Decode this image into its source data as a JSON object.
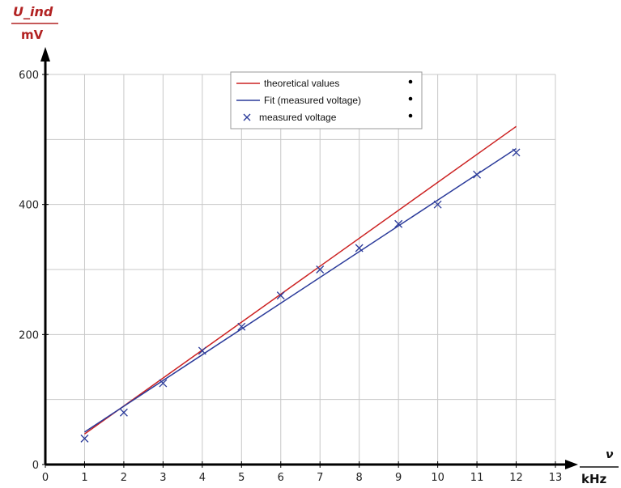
{
  "chart_data": {
    "type": "line",
    "title": "",
    "xlabel": "ν",
    "xunit": "kHz",
    "ylabel": "U_ind",
    "yunit": "mV",
    "xlim": [
      0,
      13
    ],
    "ylim": [
      0,
      600
    ],
    "x_ticks": [
      0,
      1,
      2,
      3,
      4,
      5,
      6,
      7,
      8,
      9,
      10,
      11,
      12,
      13
    ],
    "y_ticks": [
      0,
      200,
      400,
      600
    ],
    "grid": true,
    "legend_position": "top-center",
    "series": [
      {
        "name": "theoretical values",
        "kind": "line",
        "color": "#cc2222",
        "x": [
          1,
          12
        ],
        "y": [
          47,
          520
        ]
      },
      {
        "name": "Fit (measured voltage)",
        "kind": "line",
        "color": "#2a3a9a",
        "x": [
          1,
          12
        ],
        "y": [
          50,
          486
        ]
      },
      {
        "name": "measured voltage",
        "kind": "scatter",
        "marker": "x",
        "color": "#2a3a9a",
        "x": [
          1,
          2,
          3,
          4,
          5,
          6,
          7,
          8,
          9,
          10,
          11,
          12
        ],
        "y": [
          40,
          80,
          125,
          175,
          212,
          260,
          300,
          333,
          370,
          400,
          446,
          480
        ]
      }
    ]
  }
}
